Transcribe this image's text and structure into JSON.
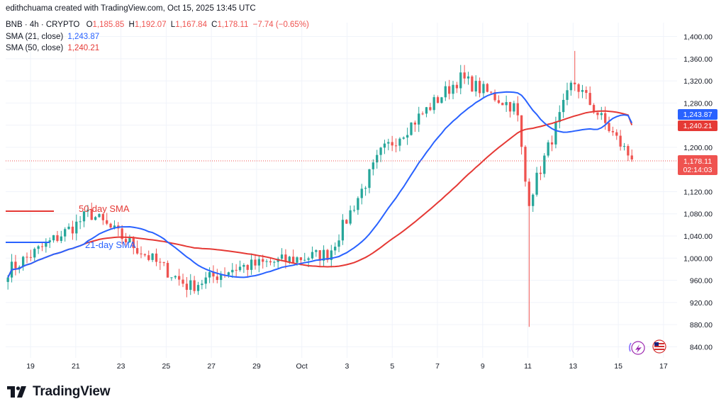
{
  "header": {
    "created_by": "edithchuama created with TradingView.com, Oct 15, 2025 13:45 UTC"
  },
  "ohlc_line": {
    "symbol": "BNB · 4h · CRYPTO",
    "open_label": "O",
    "open": "1,185.85",
    "high_label": "H",
    "high": "1,192.07",
    "low_label": "L",
    "low": "1,167.84",
    "close_label": "C",
    "close": "1,178.11",
    "change": "−7.74 (−0.65%)"
  },
  "indicators": [
    {
      "label": "SMA (21, close)",
      "value": "1,243.87",
      "color": "#2962ff"
    },
    {
      "label": "SMA (50, close)",
      "value": "1,240.21",
      "color": "#e53935"
    }
  ],
  "annotations": {
    "sma50_text": "50-day SMA",
    "sma21_text": "21-day SMA"
  },
  "price_tags": {
    "sma21": "1,243.87",
    "sma50": "1,240.21",
    "last_price": "1,178.11",
    "countdown": "02:14:03"
  },
  "logo": {
    "text": "TradingView"
  },
  "colors": {
    "up": "#26a69a",
    "down": "#ef5350",
    "sma21": "#2962ff",
    "sma50": "#e53935",
    "grid": "#f0f3fa",
    "axis_text": "#131722",
    "price_tag_bg": "#ef5350"
  },
  "chart_data": {
    "type": "candlestick",
    "symbol": "BNB",
    "timeframe": "4h",
    "exchange": "CRYPTO",
    "y_axis_ticks": [
      "1,400.00",
      "1,360.00",
      "1,320.00",
      "1,280.00",
      "1,240.00",
      "1,200.00",
      "1,160.00",
      "1,120.00",
      "1,080.00",
      "1,040.00",
      "1,000.00",
      "960.00",
      "920.00",
      "880.00",
      "840.00"
    ],
    "y_axis_values": [
      1400,
      1360,
      1320,
      1280,
      1240,
      1200,
      1160,
      1120,
      1080,
      1040,
      1000,
      960,
      920,
      880,
      840
    ],
    "x_axis_ticks": [
      "19",
      "21",
      "23",
      "25",
      "27",
      "29",
      "Oct",
      "3",
      "5",
      "7",
      "9",
      "11",
      "13",
      "15",
      "17"
    ],
    "ylim": [
      820,
      1425
    ],
    "x_range_days": [
      17.9,
      47.6
    ],
    "grid": true,
    "last_close": 1178.11,
    "key_points": [
      {
        "day": 18.0,
        "close": 978
      },
      {
        "day": 21.0,
        "close": 1060
      },
      {
        "day": 21.6,
        "close": 1082
      },
      {
        "day": 26.0,
        "close": 948
      },
      {
        "day": 28.0,
        "close": 982
      },
      {
        "day": 32.2,
        "close": 1008
      },
      {
        "day": 34.5,
        "close": 1190
      },
      {
        "day": 38.0,
        "close": 1325
      },
      {
        "day": 40.5,
        "close": 1270
      },
      {
        "day": 41.0,
        "low": 876,
        "close": 1100
      },
      {
        "day": 43.0,
        "high": 1374,
        "close": 1320
      },
      {
        "day": 45.6,
        "close": 1178.11
      }
    ],
    "sma21_last": 1243.87,
    "sma50_last": 1240.21
  }
}
